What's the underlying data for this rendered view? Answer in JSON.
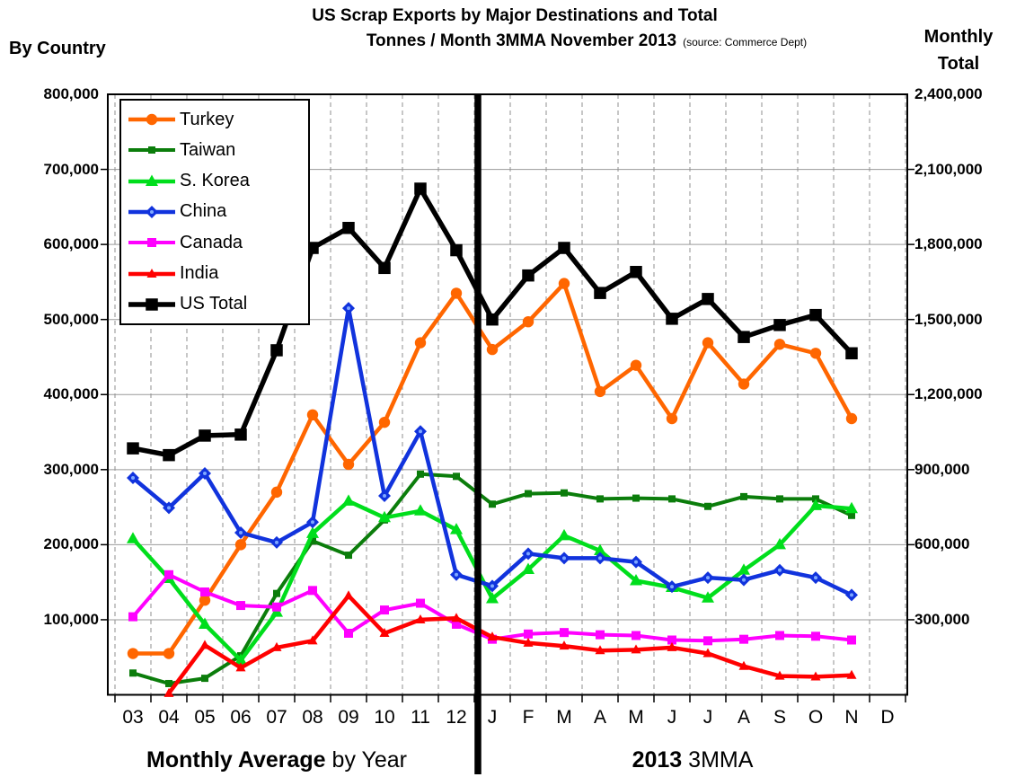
{
  "title": {
    "line1": "US Scrap Exports by Major Destinations and Total",
    "line2": "Tonnes / Month 3MMA November 2013",
    "source_note": "(source: Commerce Dept)"
  },
  "axis_titles": {
    "left": "By Country",
    "right_line1": "Monthly",
    "right_line2": "Total"
  },
  "left_axis_tick_labels": [
    "800,000",
    "700,000",
    "600,000",
    "500,000",
    "400,000",
    "300,000",
    "200,000",
    "100,000"
  ],
  "right_axis_tick_labels": [
    "2,400,000",
    "2,100,000",
    "1,800,000",
    "1,500,000",
    "1,200,000",
    "900,000",
    "600,000",
    "300,000"
  ],
  "footer": {
    "left_bold": "Monthly Average",
    "left_regular": "by Year",
    "right_bold": "2013",
    "right_regular": "3MMA"
  },
  "chart_data": {
    "type": "line",
    "x_categories": [
      "03",
      "04",
      "05",
      "06",
      "07",
      "08",
      "09",
      "10",
      "11",
      "12",
      "J",
      "F",
      "M",
      "A",
      "M",
      "J",
      "J",
      "A",
      "S",
      "O",
      "N",
      "D"
    ],
    "x_year_labels": [
      "03",
      "04",
      "05",
      "06",
      "07",
      "08",
      "09",
      "10",
      "11",
      "12"
    ],
    "x_month_labels": [
      "J",
      "F",
      "M",
      "A",
      "M",
      "J",
      "J",
      "A",
      "S",
      "O",
      "N",
      "D"
    ],
    "x_group_labels": {
      "years": "Monthly Average by Year",
      "months": "2013 3MMA"
    },
    "left_axis": {
      "title": "By Country",
      "min": 0,
      "max": 800000,
      "tick_step": 100000
    },
    "right_axis": {
      "title": "Monthly Total",
      "min": 0,
      "max": 2400000,
      "tick_step": 300000
    },
    "grid": {
      "horizontal": "solid",
      "vertical": "dashed"
    },
    "legend_position": "top-left-inside",
    "divider_after_category": "12",
    "series": [
      {
        "name": "Turkey",
        "color": "#FF6600",
        "marker": "circle",
        "axis": "left",
        "values": [
          55000,
          55000,
          126000,
          200000,
          270000,
          373000,
          307000,
          363000,
          469000,
          535000,
          460000,
          497000,
          548000,
          404000,
          439000,
          368000,
          469000,
          414000,
          467000,
          455000,
          368000,
          null
        ]
      },
      {
        "name": "Taiwan",
        "color": "#0B7D0B",
        "marker": "square-small",
        "axis": "left",
        "values": [
          29000,
          15000,
          22000,
          52000,
          135000,
          205000,
          186000,
          233000,
          294000,
          291000,
          254000,
          268000,
          269000,
          261000,
          262000,
          261000,
          251000,
          264000,
          261000,
          261000,
          239000,
          null
        ]
      },
      {
        "name": "S. Korea",
        "color": "#00DE1C",
        "marker": "triangle-large",
        "axis": "left",
        "values": [
          208000,
          155000,
          94000,
          46000,
          110000,
          215000,
          258000,
          236000,
          245000,
          220000,
          128000,
          167000,
          212000,
          192000,
          152000,
          143000,
          129000,
          166000,
          200000,
          252000,
          248000,
          null
        ]
      },
      {
        "name": "China",
        "color": "#1133DD",
        "marker": "diamond",
        "axis": "left",
        "values": [
          289000,
          249000,
          295000,
          216000,
          203000,
          230000,
          515000,
          265000,
          351000,
          160000,
          145000,
          188000,
          182000,
          182000,
          177000,
          144000,
          156000,
          153000,
          166000,
          156000,
          133000,
          null
        ]
      },
      {
        "name": "Canada",
        "color": "#FF00FF",
        "marker": "square",
        "axis": "left",
        "values": [
          104000,
          160000,
          137000,
          119000,
          117000,
          139000,
          82000,
          113000,
          122000,
          94000,
          74000,
          81000,
          83000,
          80000,
          79000,
          73000,
          72000,
          74000,
          79000,
          78000,
          73000,
          null
        ]
      },
      {
        "name": "India",
        "color": "#FF0000",
        "marker": "triangle",
        "axis": "left",
        "values": [
          null,
          2000,
          66000,
          36000,
          63000,
          72000,
          132000,
          82000,
          100000,
          102000,
          77000,
          69000,
          65000,
          59000,
          60000,
          63000,
          55000,
          38000,
          25000,
          24000,
          26000,
          null
        ]
      },
      {
        "name": "US Total",
        "color": "#000000",
        "marker": "square-large",
        "axis": "right",
        "values": [
          985000,
          958000,
          1036000,
          1040000,
          1377000,
          1786000,
          1866000,
          1706000,
          2023000,
          1777000,
          1500000,
          1676000,
          1786000,
          1606000,
          1690000,
          1503000,
          1582000,
          1430000,
          1478000,
          1518000,
          1365000,
          null
        ]
      }
    ]
  }
}
